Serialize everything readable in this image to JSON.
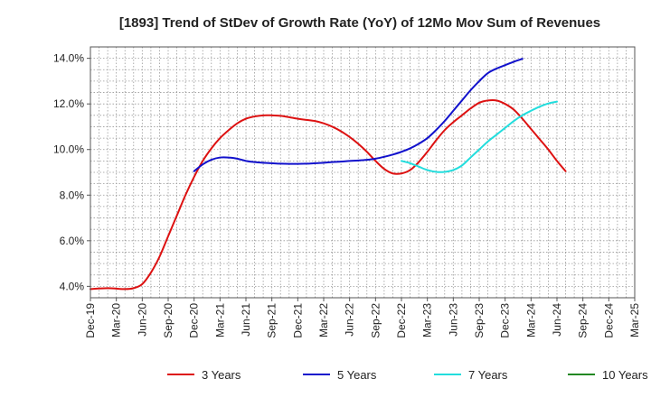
{
  "chart_data": {
    "type": "line",
    "title": "[1893]  Trend of StDev of Growth Rate (YoY) of 12Mo Mov Sum of Revenues",
    "xlabel": "",
    "ylabel": "",
    "x_start": "2019-12",
    "x_end": "2025-03",
    "ylim": [
      3.5,
      14.5
    ],
    "yticks": [
      4.0,
      6.0,
      8.0,
      10.0,
      12.0,
      14.0
    ],
    "ytick_labels": [
      "4.0%",
      "6.0%",
      "8.0%",
      "10.0%",
      "12.0%",
      "14.0%"
    ],
    "xtick_labels": [
      "Dec-19",
      "Mar-20",
      "Jun-20",
      "Sep-20",
      "Dec-20",
      "Mar-21",
      "Jun-21",
      "Sep-21",
      "Dec-21",
      "Mar-22",
      "Jun-22",
      "Sep-22",
      "Dec-22",
      "Mar-23",
      "Jun-23",
      "Sep-23",
      "Dec-23",
      "Mar-24",
      "Jun-24",
      "Sep-24",
      "Dec-24",
      "Mar-25"
    ],
    "grid": true,
    "legend_position": "bottom",
    "series": [
      {
        "name": "3 Years",
        "color": "#dd1111",
        "points": [
          [
            0,
            3.88
          ],
          [
            2,
            3.92
          ],
          [
            4,
            3.88
          ],
          [
            5,
            3.92
          ],
          [
            6,
            4.1
          ],
          [
            7,
            4.6
          ],
          [
            8,
            5.3
          ],
          [
            9,
            6.2
          ],
          [
            10,
            7.1
          ],
          [
            11,
            8.0
          ],
          [
            12,
            8.8
          ],
          [
            13,
            9.5
          ],
          [
            14,
            10.05
          ],
          [
            15,
            10.5
          ],
          [
            16,
            10.85
          ],
          [
            17,
            11.15
          ],
          [
            18,
            11.35
          ],
          [
            19,
            11.45
          ],
          [
            20,
            11.5
          ],
          [
            21,
            11.5
          ],
          [
            22,
            11.48
          ],
          [
            23,
            11.42
          ],
          [
            24,
            11.35
          ],
          [
            25,
            11.3
          ],
          [
            26,
            11.25
          ],
          [
            27,
            11.15
          ],
          [
            28,
            11.0
          ],
          [
            29,
            10.8
          ],
          [
            30,
            10.55
          ],
          [
            31,
            10.25
          ],
          [
            32,
            9.9
          ],
          [
            33,
            9.5
          ],
          [
            34,
            9.15
          ],
          [
            35,
            8.95
          ],
          [
            36,
            8.95
          ],
          [
            37,
            9.1
          ],
          [
            38,
            9.45
          ],
          [
            39,
            9.9
          ],
          [
            40,
            10.4
          ],
          [
            41,
            10.85
          ],
          [
            42,
            11.2
          ],
          [
            43,
            11.5
          ],
          [
            44,
            11.8
          ],
          [
            45,
            12.05
          ],
          [
            46,
            12.15
          ],
          [
            47,
            12.15
          ],
          [
            48,
            12.0
          ],
          [
            49,
            11.75
          ],
          [
            50,
            11.35
          ],
          [
            51,
            10.9
          ],
          [
            52,
            10.45
          ],
          [
            53,
            10.0
          ],
          [
            54,
            9.5
          ],
          [
            55,
            9.05
          ]
        ]
      },
      {
        "name": "5 Years",
        "color": "#1111cc",
        "points": [
          [
            12,
            9.05
          ],
          [
            13,
            9.35
          ],
          [
            14,
            9.55
          ],
          [
            15,
            9.65
          ],
          [
            16,
            9.65
          ],
          [
            17,
            9.6
          ],
          [
            18,
            9.5
          ],
          [
            19,
            9.45
          ],
          [
            20,
            9.42
          ],
          [
            21,
            9.4
          ],
          [
            22,
            9.38
          ],
          [
            23,
            9.37
          ],
          [
            24,
            9.37
          ],
          [
            25,
            9.38
          ],
          [
            26,
            9.4
          ],
          [
            27,
            9.42
          ],
          [
            28,
            9.45
          ],
          [
            29,
            9.47
          ],
          [
            30,
            9.5
          ],
          [
            31,
            9.52
          ],
          [
            32,
            9.55
          ],
          [
            33,
            9.6
          ],
          [
            34,
            9.68
          ],
          [
            35,
            9.78
          ],
          [
            36,
            9.9
          ],
          [
            37,
            10.05
          ],
          [
            38,
            10.25
          ],
          [
            39,
            10.5
          ],
          [
            40,
            10.85
          ],
          [
            41,
            11.25
          ],
          [
            42,
            11.7
          ],
          [
            43,
            12.15
          ],
          [
            44,
            12.6
          ],
          [
            45,
            13.0
          ],
          [
            46,
            13.35
          ],
          [
            47,
            13.55
          ],
          [
            48,
            13.7
          ],
          [
            49,
            13.85
          ],
          [
            50,
            13.98
          ]
        ]
      },
      {
        "name": "7 Years",
        "color": "#22dddd",
        "points": [
          [
            36,
            9.5
          ],
          [
            37,
            9.4
          ],
          [
            38,
            9.25
          ],
          [
            39,
            9.1
          ],
          [
            40,
            9.02
          ],
          [
            41,
            9.02
          ],
          [
            42,
            9.1
          ],
          [
            43,
            9.3
          ],
          [
            44,
            9.65
          ],
          [
            45,
            10.0
          ],
          [
            46,
            10.35
          ],
          [
            47,
            10.65
          ],
          [
            48,
            10.95
          ],
          [
            49,
            11.25
          ],
          [
            50,
            11.5
          ],
          [
            51,
            11.7
          ],
          [
            52,
            11.88
          ],
          [
            53,
            12.02
          ],
          [
            54,
            12.1
          ]
        ]
      },
      {
        "name": "10 Years",
        "color": "#228822",
        "points": []
      }
    ]
  }
}
